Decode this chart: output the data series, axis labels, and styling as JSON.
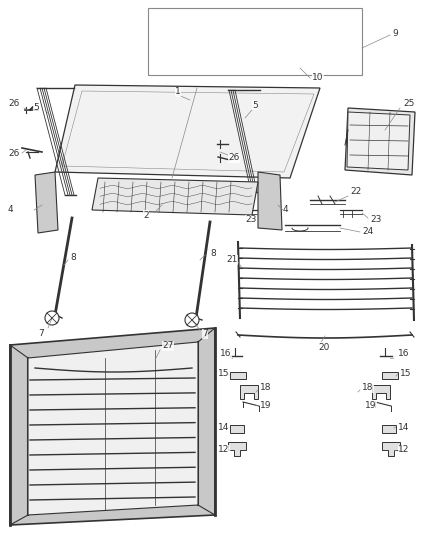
{
  "bg_color": "#ffffff",
  "line_color": "#888888",
  "dark_color": "#333333",
  "label_color": "#333333",
  "figsize": [
    4.38,
    5.33
  ],
  "dpi": 100
}
